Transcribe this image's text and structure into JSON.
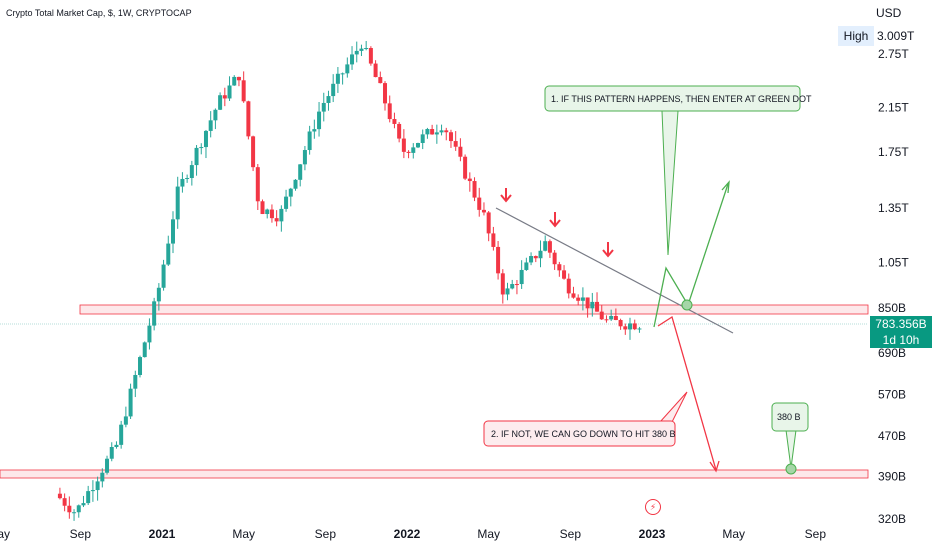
{
  "header": {
    "title": "Crypto Total Market Cap, $, 1W, CRYPTOCAP"
  },
  "price_axis": {
    "currency": "USD",
    "high_label": "High",
    "high_value": "3.009T",
    "current_price": "783.356B",
    "countdown": "1d 10h"
  },
  "annotations": {
    "note1": "1. IF THIS PATTERN HAPPENS, THEN ENTER AT GREEN DOT",
    "note2": "2. IF NOT, WE CAN GO DOWN TO HIT 380 B",
    "target_label": "380 B"
  },
  "colors": {
    "up": "#26a69a",
    "down": "#f23645",
    "zone_fill": "#fde8ea",
    "zone_stroke": "#f23645",
    "trendline": "#787b86",
    "green_path": "#4caf50",
    "red_path": "#f23645",
    "price_box": "#089981",
    "green_note_bg": "#e8f5e9",
    "red_note_bg": "#fdecee"
  },
  "chart_data": {
    "type": "candlestick",
    "title": "Crypto Total Market Cap, $, 1W, CRYPTOCAP",
    "y_scale": "log",
    "y_tick_labels": [
      "3.009T",
      "2.75T",
      "2.15T",
      "1.75T",
      "1.35T",
      "1.05T",
      "850B",
      "690B",
      "570B",
      "470B",
      "390B",
      "320B"
    ],
    "x_tick_labels": [
      "May",
      "Sep",
      "2021",
      "May",
      "Sep",
      "2022",
      "May",
      "Sep",
      "2023",
      "May",
      "Sep"
    ],
    "current_price": "783.356B",
    "high": "3.009T",
    "key_levels": {
      "resistance_zone": [
        820,
        850
      ],
      "support_zone": [
        375,
        395
      ]
    },
    "waypoints": [
      {
        "date": "2020-08",
        "price": 360
      },
      {
        "date": "2020-09",
        "price": 330
      },
      {
        "date": "2020-11",
        "price": 450
      },
      {
        "date": "2021-01",
        "price": 900
      },
      {
        "date": "2021-02",
        "price": 1450
      },
      {
        "date": "2021-04",
        "price": 2200
      },
      {
        "date": "2021-05",
        "price": 2500
      },
      {
        "date": "2021-06",
        "price": 1350
      },
      {
        "date": "2021-07",
        "price": 1300
      },
      {
        "date": "2021-09",
        "price": 2150
      },
      {
        "date": "2021-11",
        "price": 2900
      },
      {
        "date": "2021-12",
        "price": 2300
      },
      {
        "date": "2022-01",
        "price": 1750
      },
      {
        "date": "2022-03",
        "price": 2000
      },
      {
        "date": "2022-05",
        "price": 1300
      },
      {
        "date": "2022-06",
        "price": 900
      },
      {
        "date": "2022-08",
        "price": 1150
      },
      {
        "date": "2022-09",
        "price": 950
      },
      {
        "date": "2022-11",
        "price": 800
      },
      {
        "date": "2022-12",
        "price": 790
      }
    ]
  }
}
